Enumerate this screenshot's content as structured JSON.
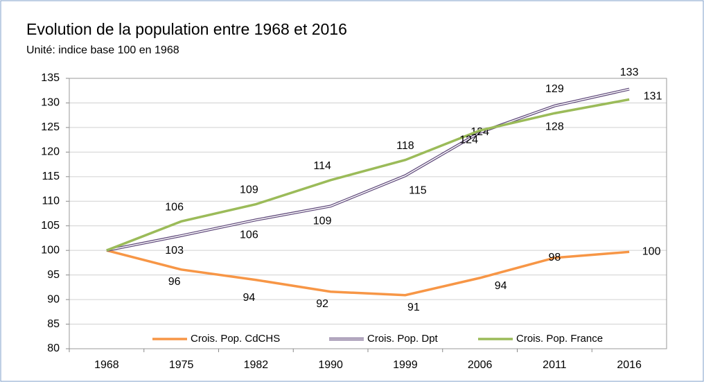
{
  "chart_data": {
    "type": "line",
    "title": "Evolution de la population entre 1968 et 2016",
    "subtitle": "Unité: indice base 100 en 1968",
    "categories": [
      "1968",
      "1975",
      "1982",
      "1990",
      "1999",
      "2006",
      "2011",
      "2016"
    ],
    "series": [
      {
        "name": "Crois. Pop. CdCHS",
        "color": "#f79646",
        "values": [
          100,
          96.1,
          94,
          91.6,
          90.9,
          94.4,
          98.5,
          99.7
        ],
        "value_labels": [
          null,
          "96",
          "94",
          "92",
          "91",
          "94",
          "98",
          "100"
        ]
      },
      {
        "name": "Crois. Pop. Dpt",
        "color": "#604a7b",
        "values": [
          100,
          103,
          106.2,
          109,
          115.2,
          124,
          129.4,
          132.8
        ],
        "value_labels": [
          null,
          "103",
          "106",
          "109",
          "115",
          "124",
          "129",
          "133"
        ]
      },
      {
        "name": "Crois. Pop. France",
        "color": "#9bbb59",
        "values": [
          100,
          105.9,
          109.4,
          114.3,
          118.4,
          124.4,
          127.9,
          130.7
        ],
        "value_labels": [
          null,
          "106",
          "109",
          "114",
          "118",
          "124",
          "128",
          "131"
        ]
      }
    ],
    "ylim": [
      80,
      135
    ],
    "yticks": [
      80,
      85,
      90,
      95,
      100,
      105,
      110,
      115,
      120,
      125,
      130,
      135
    ],
    "grid": true,
    "legend": "bottom"
  }
}
